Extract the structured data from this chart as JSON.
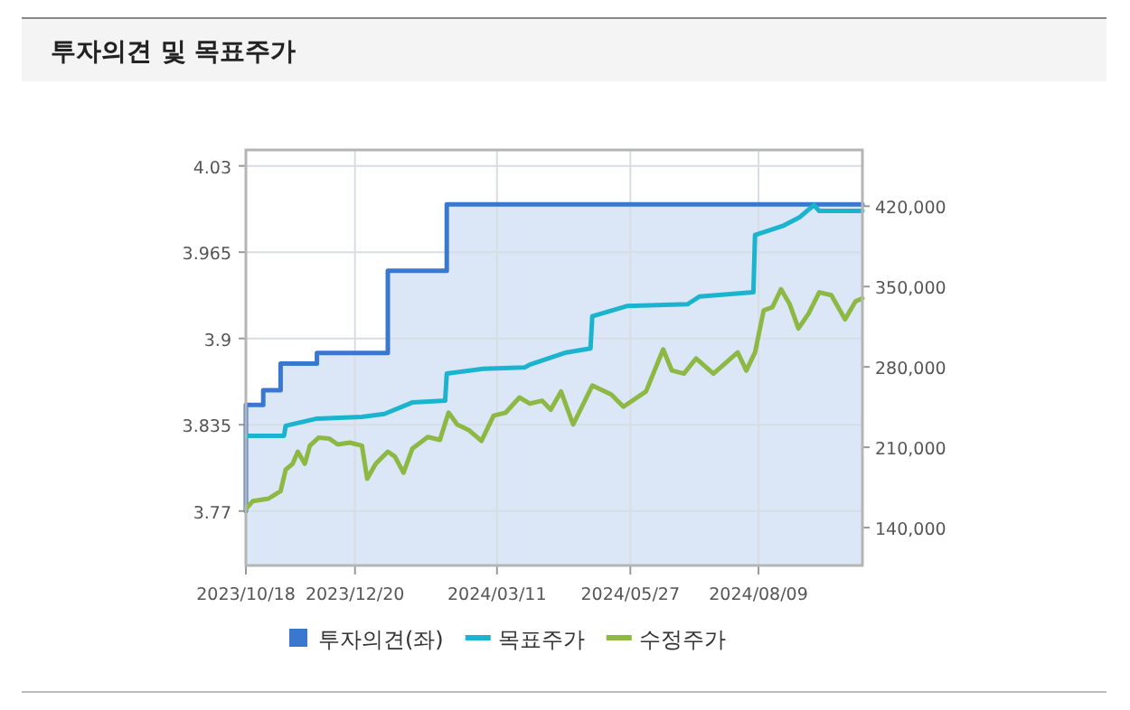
{
  "chart_data": {
    "type": "line",
    "title": "투자의견 및 목표주가",
    "xlim": [
      "2023-10-18",
      "2024-10-08"
    ],
    "xticks": [
      {
        "value": "2023-10-18",
        "label": "2023/10/18"
      },
      {
        "value": "2023-12-20",
        "label": "2023/12/20"
      },
      {
        "value": "2024-03-11",
        "label": "2024/03/11"
      },
      {
        "value": "2024-05-27",
        "label": "2024/05/27"
      },
      {
        "value": "2024-08-09",
        "label": "2024/08/09"
      }
    ],
    "ylim": [
      3.729,
      4.042
    ],
    "yticks": [
      3.77,
      3.835,
      3.9,
      3.965,
      4.03
    ],
    "y2lim": [
      107000,
      469000
    ],
    "y2ticks": [
      {
        "value": 140000,
        "label": "140,000"
      },
      {
        "value": 210000,
        "label": "210,000"
      },
      {
        "value": 280000,
        "label": "280,000"
      },
      {
        "value": 350000,
        "label": "350,000"
      },
      {
        "value": 420000,
        "label": "420,000"
      }
    ],
    "grid": true,
    "legend": "bottom",
    "series": [
      {
        "name": "투자의견(좌)",
        "type": "area",
        "color": "#3a78d0",
        "x": [
          "2023-10-18",
          "2023-10-18",
          "2023-10-28",
          "2023-10-28",
          "2023-11-07",
          "2023-11-07",
          "2023-11-28",
          "2023-11-28",
          "2024-01-08",
          "2024-01-08",
          "2024-02-11",
          "2024-02-11",
          "2024-10-08"
        ],
        "values": [
          3.77,
          3.85,
          3.85,
          3.861,
          3.861,
          3.881,
          3.881,
          3.889,
          3.889,
          3.951,
          3.951,
          4.001,
          4.001
        ]
      },
      {
        "name": "목표주가",
        "axis": "y2",
        "color": "#1ab4cf",
        "x": [
          "2023-10-18",
          "2023-11-09",
          "2023-11-10",
          "2023-11-28",
          "2023-12-24",
          "2024-01-06",
          "2024-01-22",
          "2024-02-10",
          "2024-02-11",
          "2024-03-03",
          "2024-03-27",
          "2024-03-30",
          "2024-04-20",
          "2024-05-04",
          "2024-05-05",
          "2024-05-25",
          "2024-06-29",
          "2024-07-06",
          "2024-08-06",
          "2024-08-07",
          "2024-08-23",
          "2024-09-02",
          "2024-09-10",
          "2024-09-13",
          "2024-10-08"
        ],
        "values": [
          220000,
          220000,
          228600,
          234900,
          236500,
          239000,
          249000,
          250600,
          274200,
          278400,
          279500,
          282000,
          292600,
          296000,
          324000,
          333000,
          334600,
          341300,
          345000,
          394800,
          402700,
          410600,
          421000,
          415800,
          416000
        ]
      },
      {
        "name": "수정주가",
        "axis": "y2",
        "color": "#8db843",
        "x": [
          "2023-10-18",
          "2023-10-22",
          "2023-10-31",
          "2023-11-07",
          "2023-11-10",
          "2023-11-14",
          "2023-11-17",
          "2023-11-21",
          "2023-11-24",
          "2023-11-29",
          "2023-12-05",
          "2023-12-10",
          "2023-12-17",
          "2023-12-24",
          "2023-12-27",
          "2024-01-01",
          "2024-01-08",
          "2024-01-12",
          "2024-01-17",
          "2024-01-22",
          "2024-01-31",
          "2024-02-07",
          "2024-02-12",
          "2024-02-17",
          "2024-02-24",
          "2024-03-02",
          "2024-03-09",
          "2024-03-16",
          "2024-03-24",
          "2024-03-30",
          "2024-04-06",
          "2024-04-11",
          "2024-04-17",
          "2024-04-24",
          "2024-05-05",
          "2024-05-16",
          "2024-05-23",
          "2024-06-05",
          "2024-06-15",
          "2024-06-20",
          "2024-06-27",
          "2024-07-04",
          "2024-07-14",
          "2024-07-28",
          "2024-08-02",
          "2024-08-07",
          "2024-08-12",
          "2024-08-17",
          "2024-08-22",
          "2024-08-27",
          "2024-09-01",
          "2024-09-07",
          "2024-09-13",
          "2024-09-20",
          "2024-09-28",
          "2024-10-04",
          "2024-10-08"
        ],
        "values": [
          156200,
          163100,
          165200,
          171900,
          190400,
          195600,
          206100,
          195600,
          211300,
          218200,
          217600,
          212400,
          214000,
          211300,
          182500,
          195600,
          206100,
          201900,
          187700,
          208700,
          218900,
          216400,
          240200,
          229700,
          224500,
          215500,
          237500,
          240200,
          253300,
          248100,
          250600,
          242700,
          258500,
          229700,
          263800,
          255900,
          245400,
          258500,
          295300,
          276900,
          274200,
          287400,
          274200,
          292600,
          276900,
          292600,
          329200,
          331900,
          347600,
          334600,
          313500,
          326700,
          345000,
          342500,
          321400,
          337100,
          339800
        ]
      }
    ]
  }
}
